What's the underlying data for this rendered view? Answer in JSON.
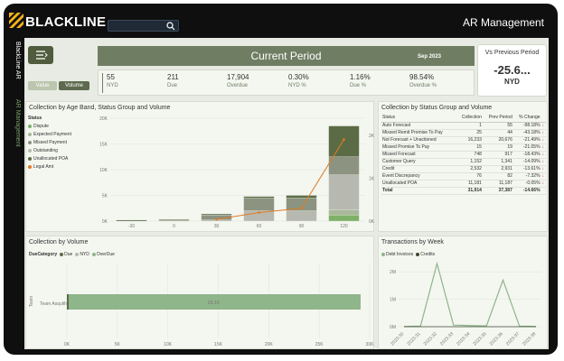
{
  "header": {
    "brand": "BLACKLINE",
    "app_title": "AR Management",
    "search_placeholder": ""
  },
  "sidebar": {
    "tabs": [
      "BlackLine AR",
      "AR Management"
    ]
  },
  "toggles": {
    "value_label": "Value",
    "volume_label": "Volume"
  },
  "period": {
    "title": "Current Period",
    "date": "Sep 2023"
  },
  "kpis": [
    {
      "value": "55",
      "label": "NYD"
    },
    {
      "value": "211",
      "label": "Due"
    },
    {
      "value": "17,904",
      "label": "Overdue"
    },
    {
      "value": "0.30%",
      "label": "NYD %"
    },
    {
      "value": "1.16%",
      "label": "Due %"
    },
    {
      "value": "98.54%",
      "label": "Overdue %"
    }
  ],
  "vs_previous": {
    "title": "Vs Previous Period",
    "value": "-25.6...",
    "label": "NYD"
  },
  "colors": {
    "accent": "#6f7e63",
    "dark_green": "#4f5c3d",
    "orange": "#e07b26",
    "down_arrow": "#c0392b"
  },
  "age_band": {
    "title": "Collection by Age Band, Status Group and Volume",
    "legend_title": "Status",
    "legend": [
      {
        "label": "Dispute",
        "color": "#7fb069"
      },
      {
        "label": "Expected Payment",
        "color": "#a9b89a"
      },
      {
        "label": "Missed Payment",
        "color": "#8c9481"
      },
      {
        "label": "Outstanding",
        "color": "#b7b9b0"
      },
      {
        "label": "Unallocated POA",
        "color": "#5b6b45"
      },
      {
        "label": "Legal Amt",
        "color": "#e07b26"
      }
    ]
  },
  "status_group": {
    "title": "Collection by Status Group and Volume",
    "columns": [
      "Status",
      "Collection",
      "Prev Period",
      "% Change"
    ],
    "rows": [
      [
        "Auto Forecast",
        "1",
        "55",
        "-98.18%"
      ],
      [
        "Missed Remit Promise To Pay",
        "25",
        "44",
        "-43.18%"
      ],
      [
        "Not Forecast + Unactioned",
        "16,233",
        "20,676",
        "-21.49%"
      ],
      [
        "Missed Promise To Pay",
        "15",
        "19",
        "-21.05%"
      ],
      [
        "Missed Forecast",
        "748",
        "917",
        "-18.43%"
      ],
      [
        "Customer Query",
        "1,152",
        "1,341",
        "-14.09%"
      ],
      [
        "Credit",
        "2,532",
        "2,931",
        "-13.61%"
      ],
      [
        "Event Discrepancy",
        "76",
        "82",
        "-7.32%"
      ],
      [
        "Unallocated POA",
        "11,181",
        "11,187",
        "-0.05%"
      ]
    ],
    "total": [
      "Total",
      "31,914",
      "37,387",
      "-14.66%"
    ]
  },
  "by_volume": {
    "title": "Collection by Volume",
    "legend_title": "DueCategory",
    "legend": [
      {
        "label": "Due",
        "color": "#5b6b45"
      },
      {
        "label": "NYD",
        "color": "#b7b9b0"
      },
      {
        "label": "OverDue",
        "color": "#8fb58a"
      }
    ],
    "y_label": "Team",
    "bar_label": "Team Asquith",
    "bar_value": "29.1K",
    "x_ticks": [
      "0K",
      "5K",
      "10K",
      "15K",
      "20K",
      "25K",
      "30K"
    ]
  },
  "transactions": {
    "title": "Transactions by Week",
    "legend": [
      {
        "label": "Debt Invoices",
        "color": "#8fb58a"
      },
      {
        "label": "Credits",
        "color": "#3e4a33"
      }
    ],
    "y_ticks": [
      "0M",
      "1M",
      "2M"
    ],
    "x_ticks": [
      "2023-30",
      "2023-31",
      "2023-32",
      "2023-33",
      "2023-34",
      "2023-35",
      "2023-36",
      "2023-37",
      "2023-38"
    ]
  },
  "chart_data": [
    {
      "type": "bar",
      "title": "Collection by Age Band, Status Group and Volume",
      "categories": [
        "-30",
        "0",
        "30",
        "60",
        "90",
        "120"
      ],
      "ylim": [
        0,
        20000
      ],
      "y_ticks": [
        "0K",
        "5K",
        "10K",
        "15K",
        "20K"
      ],
      "y2_ticks": [
        "0K",
        "1K",
        "2K"
      ],
      "series": [
        {
          "name": "Dispute",
          "values": [
            0,
            0,
            0,
            0,
            0,
            1200
          ]
        },
        {
          "name": "Expected Payment",
          "values": [
            0,
            0,
            0,
            0,
            0,
            1000
          ]
        },
        {
          "name": "Missed Payment",
          "values": [
            0,
            100,
            1000,
            2500,
            2500,
            3500
          ]
        },
        {
          "name": "Outstanding",
          "values": [
            0,
            0,
            200,
            2000,
            2000,
            6800
          ]
        },
        {
          "name": "Unallocated POA",
          "values": [
            200,
            200,
            200,
            300,
            500,
            6000
          ]
        },
        {
          "name": "Legal Amt",
          "values": [
            0,
            0,
            40,
            200,
            300,
            1900
          ]
        }
      ]
    },
    {
      "type": "bar",
      "title": "Collection by Volume",
      "categories": [
        "Team Asquith"
      ],
      "xlim": [
        0,
        30000
      ],
      "series": [
        {
          "name": "OverDue",
          "values": [
            29100
          ]
        }
      ]
    },
    {
      "type": "line",
      "title": "Transactions by Week",
      "x": [
        "2023-30",
        "2023-31",
        "2023-32",
        "2023-33",
        "2023-34",
        "2023-35",
        "2023-36",
        "2023-37",
        "2023-38"
      ],
      "ylim": [
        0,
        2500000
      ],
      "series": [
        {
          "name": "Debt Invoices",
          "values": [
            10000,
            20000,
            2300000,
            60000,
            40000,
            30000,
            1700000,
            20000,
            10000
          ]
        },
        {
          "name": "Credits",
          "values": [
            0,
            0,
            0,
            0,
            0,
            0,
            0,
            0,
            0
          ]
        }
      ]
    }
  ]
}
